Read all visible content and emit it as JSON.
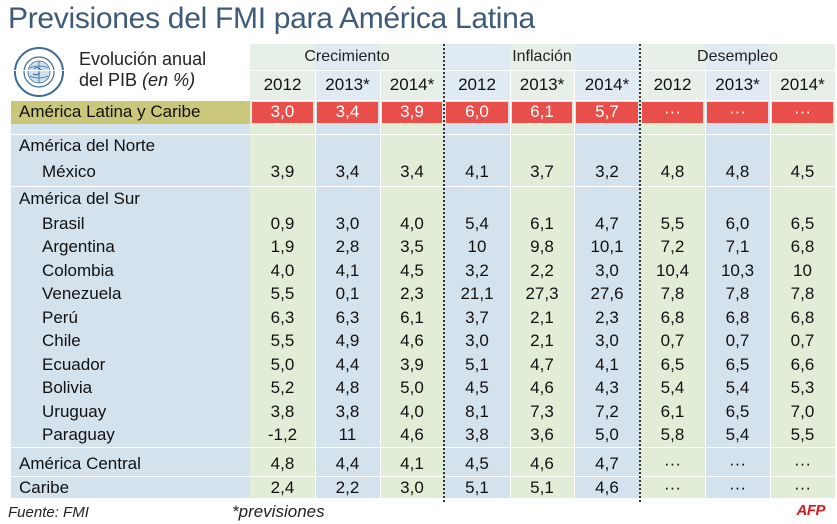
{
  "title": "Previsiones del FMI para América Latina",
  "subtitle_main": "Evolución anual",
  "subtitle_line2": "del PIB",
  "subtitle_unit": "(en %)",
  "logo_text": "FONDO MONETARIO INTERNACIONAL",
  "footer_source": "Fuente: FMI",
  "footer_note": "*previsiones",
  "agency": "AFP",
  "colors": {
    "title": "#3d5a78",
    "panel_blue": "#d4e2ed",
    "panel_green": "#e2edd7",
    "header_row": "#eaf0f5",
    "highlight_red": "#e94f4a",
    "highlight_label": "#c9c77a"
  },
  "chart_data": {
    "type": "table",
    "title": "Previsiones del FMI para América Latina",
    "groups": [
      {
        "name": "Crecimiento",
        "years": [
          "2012",
          "2013*",
          "2014*"
        ]
      },
      {
        "name": "Inflación",
        "years": [
          "2012",
          "2013*",
          "2014*"
        ]
      },
      {
        "name": "Desempleo",
        "years": [
          "2012",
          "2013*",
          "2014*"
        ]
      }
    ],
    "rows": [
      {
        "label": "América Latina y Caribe",
        "kind": "highlight",
        "values": [
          "3,0",
          "3,4",
          "3,9",
          "6,0",
          "6,1",
          "5,7",
          "···",
          "···",
          "···"
        ]
      },
      {
        "label": "América del Norte",
        "kind": "region",
        "values": []
      },
      {
        "label": "México",
        "kind": "country",
        "values": [
          "3,9",
          "3,4",
          "3,4",
          "4,1",
          "3,7",
          "3,2",
          "4,8",
          "4,8",
          "4,5"
        ]
      },
      {
        "label": "América del Sur",
        "kind": "region",
        "values": []
      },
      {
        "label": "Brasil",
        "kind": "country",
        "values": [
          "0,9",
          "3,0",
          "4,0",
          "5,4",
          "6,1",
          "4,7",
          "5,5",
          "6,0",
          "6,5"
        ]
      },
      {
        "label": "Argentina",
        "kind": "country",
        "values": [
          "1,9",
          "2,8",
          "3,5",
          "10",
          "9,8",
          "10,1",
          "7,2",
          "7,1",
          "6,8"
        ]
      },
      {
        "label": "Colombia",
        "kind": "country",
        "values": [
          "4,0",
          "4,1",
          "4,5",
          "3,2",
          "2,2",
          "3,0",
          "10,4",
          "10,3",
          "10"
        ]
      },
      {
        "label": "Venezuela",
        "kind": "country",
        "values": [
          "5,5",
          "0,1",
          "2,3",
          "21,1",
          "27,3",
          "27,6",
          "7,8",
          "7,8",
          "7,8"
        ]
      },
      {
        "label": "Perú",
        "kind": "country",
        "values": [
          "6,3",
          "6,3",
          "6,1",
          "3,7",
          "2,1",
          "2,3",
          "6,8",
          "6,8",
          "6,8"
        ]
      },
      {
        "label": "Chile",
        "kind": "country",
        "values": [
          "5,5",
          "4,9",
          "4,6",
          "3,0",
          "2,1",
          "3,0",
          "0,7",
          "0,7",
          "0,7"
        ]
      },
      {
        "label": "Ecuador",
        "kind": "country",
        "values": [
          "5,0",
          "4,4",
          "3,9",
          "5,1",
          "4,7",
          "4,1",
          "6,5",
          "6,5",
          "6,6"
        ]
      },
      {
        "label": "Bolivia",
        "kind": "country",
        "values": [
          "5,2",
          "4,8",
          "5,0",
          "4,5",
          "4,6",
          "4,3",
          "5,4",
          "5,4",
          "5,3"
        ]
      },
      {
        "label": "Uruguay",
        "kind": "country",
        "values": [
          "3,8",
          "3,8",
          "4,0",
          "8,1",
          "7,3",
          "7,2",
          "6,1",
          "6,5",
          "7,0"
        ]
      },
      {
        "label": "Paraguay",
        "kind": "country",
        "values": [
          "-1,2",
          "11",
          "4,6",
          "3,8",
          "3,6",
          "5,0",
          "5,8",
          "5,4",
          "5,5"
        ]
      },
      {
        "label": "América Central",
        "kind": "region_values",
        "values": [
          "4,8",
          "4,4",
          "4,1",
          "4,5",
          "4,6",
          "4,7",
          "···",
          "···",
          "···"
        ]
      },
      {
        "label": "Caribe",
        "kind": "region_values",
        "values": [
          "2,4",
          "2,2",
          "3,0",
          "5,1",
          "5,1",
          "4,6",
          "···",
          "···",
          "···"
        ]
      }
    ]
  }
}
